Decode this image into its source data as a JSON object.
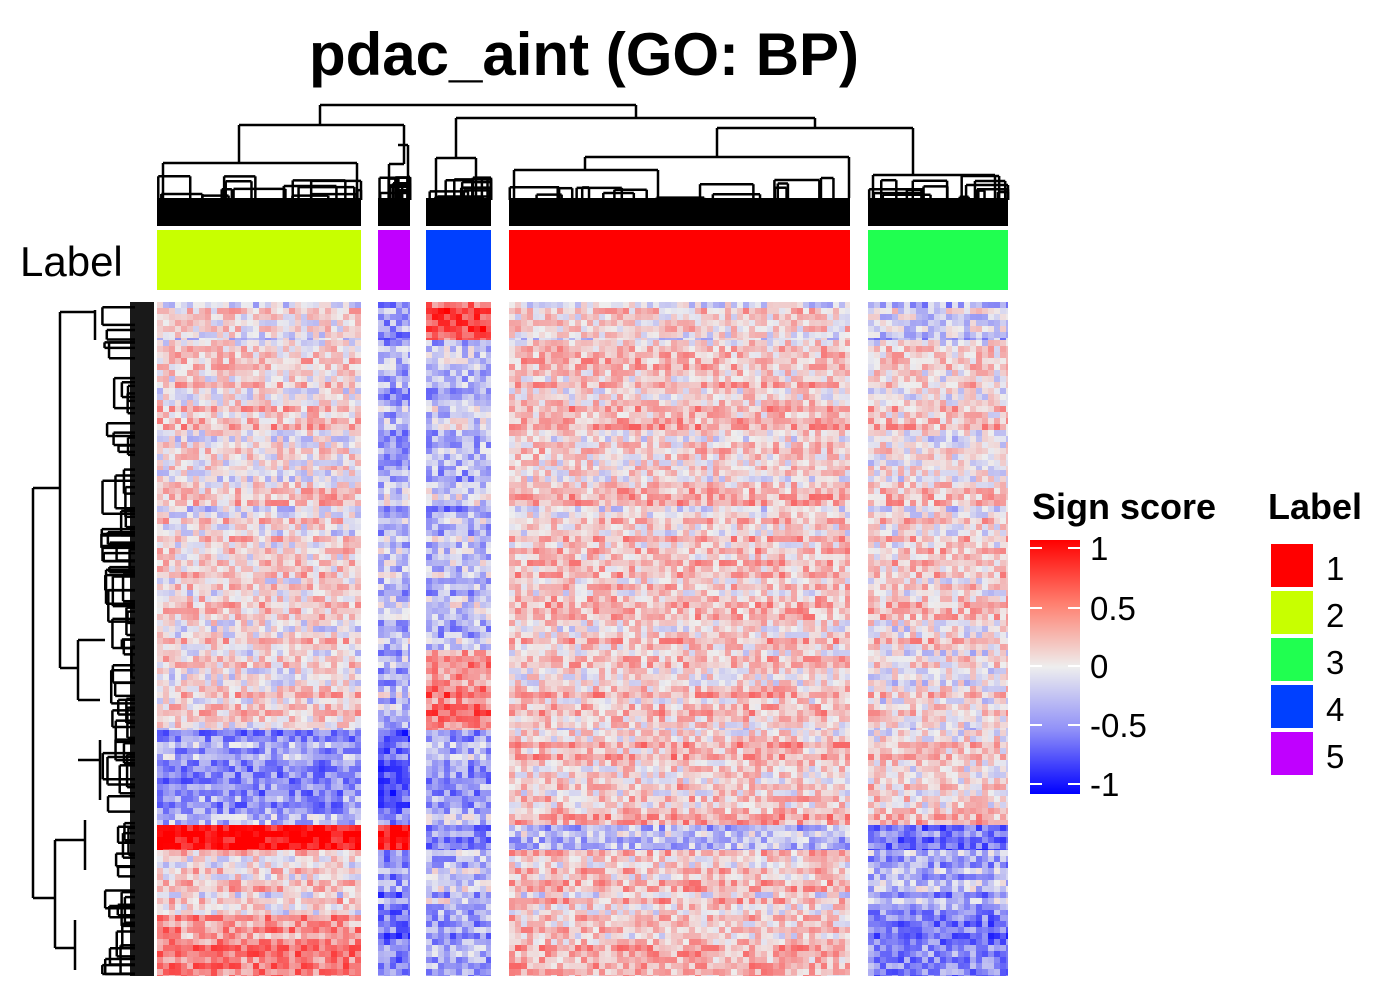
{
  "chart_data": {
    "type": "heatmap",
    "title": "pdac_aint (GO: BP)",
    "row_annotation_label": "Label",
    "color_scale": {
      "title": "Sign score",
      "min": -1,
      "max": 1,
      "ticks": [
        "1",
        "0.5",
        "0",
        "-0.5",
        "-1"
      ],
      "low_color": "#0000ff",
      "mid_color": "#eeeeee",
      "high_color": "#ff0000"
    },
    "clusters": [
      {
        "label": "2",
        "color": "#c8ff00"
      },
      {
        "label": "5",
        "color": "#c000ff"
      },
      {
        "label": "4",
        "color": "#0040ff"
      },
      {
        "label": "1",
        "color": "#ff0000"
      },
      {
        "label": "3",
        "color": "#20ff50"
      }
    ],
    "legend": {
      "title": "Label",
      "items": [
        {
          "label": "1",
          "color": "#ff0000"
        },
        {
          "label": "2",
          "color": "#c8ff00"
        },
        {
          "label": "3",
          "color": "#20ff50"
        },
        {
          "label": "4",
          "color": "#0040ff"
        },
        {
          "label": "5",
          "color": "#c000ff"
        }
      ]
    }
  }
}
